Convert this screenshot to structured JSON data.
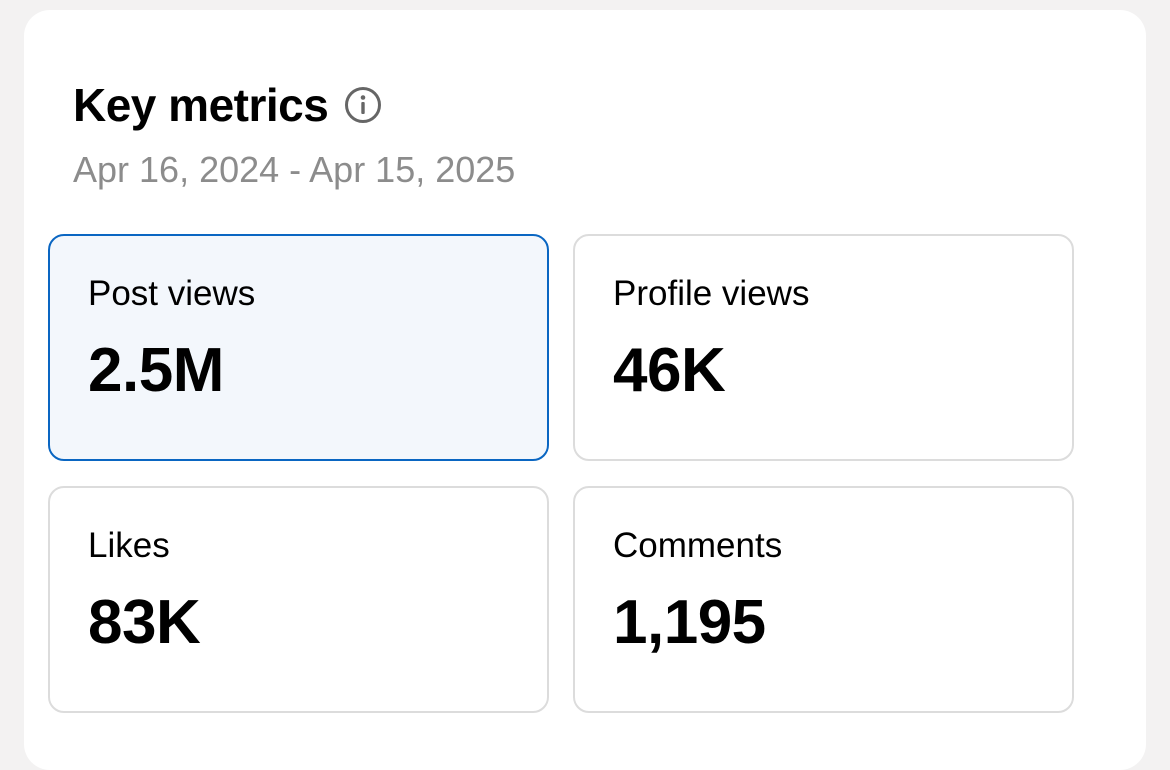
{
  "header": {
    "title": "Key metrics",
    "info_icon": "info-circle-icon",
    "date_range": "Apr 16, 2024 - Apr 15, 2025"
  },
  "metrics": [
    {
      "label": "Post views",
      "value": "2.5M",
      "selected": true
    },
    {
      "label": "Profile views",
      "value": "46K",
      "selected": false
    },
    {
      "label": "Likes",
      "value": "83K",
      "selected": false
    },
    {
      "label": "Comments",
      "value": "1,195",
      "selected": false
    }
  ],
  "colors": {
    "accent": "#0a66c2",
    "selected_bg": "#f3f7fc",
    "muted_text": "#8c8c8c",
    "border": "#dcdcdc",
    "page_bg": "#f3f2f2"
  }
}
